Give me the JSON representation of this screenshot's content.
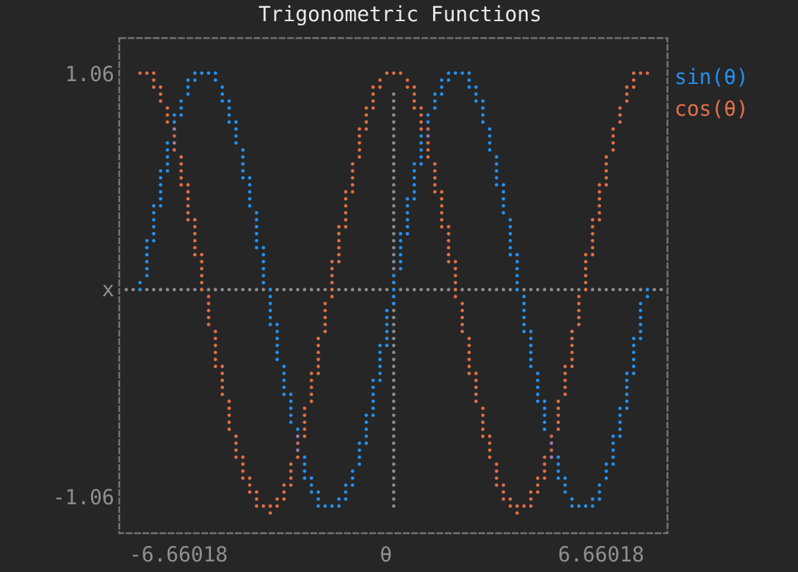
{
  "title": "Trigonometric Functions",
  "axes": {
    "y_max_label": "1.06",
    "y_axis_label": "x",
    "y_min_label": "-1.06",
    "x_min_label": "-6.66018",
    "x_axis_label": "θ",
    "x_max_label": "6.66018"
  },
  "legend": [
    {
      "label": "sin(θ)",
      "color": "#2191f0"
    },
    {
      "label": "cos(θ)",
      "color": "#e2714a"
    }
  ],
  "colors": {
    "background": "#262626",
    "title": "#ebebeb",
    "axis_labels": "#8f8f8f",
    "frame": "#747474",
    "zero_lines": "#8a8a8a",
    "sin": "#2191f0",
    "cos": "#e06e43",
    "overlap_purple": "#9678b4",
    "overlap_pink": "#c06868"
  },
  "chart_data": {
    "type": "scatter",
    "title": "Trigonometric Functions",
    "xlabel": "θ",
    "ylabel": "x",
    "xlim": [
      -6.66018,
      6.66018
    ],
    "ylim": [
      -1.06,
      1.06
    ],
    "theta_range": [
      -6.283185307,
      6.283185307
    ],
    "marker": "dot",
    "grid": false,
    "legend_position": "right-outside",
    "series": [
      {
        "name": "sin(θ)",
        "fn": "sin",
        "color": "#2191f0"
      },
      {
        "name": "cos(θ)",
        "fn": "cos",
        "color": "#e06e43"
      }
    ],
    "reference_lines": [
      {
        "name": "x-zero-line",
        "orientation": "horizontal",
        "value": 0,
        "color": "#8a8a8a"
      },
      {
        "name": "theta-zero-line",
        "orientation": "vertical",
        "value": 0,
        "color": "#8a8a8a"
      }
    ],
    "key_values": {
      "theta": [
        -6.283,
        -5.498,
        -4.712,
        -3.927,
        -3.142,
        -2.356,
        -1.571,
        -0.785,
        0,
        0.785,
        1.571,
        2.356,
        3.142,
        3.927,
        4.712,
        5.498,
        6.283
      ],
      "sin": [
        0,
        0.707,
        1,
        0.707,
        0,
        -0.707,
        -1,
        -0.707,
        0,
        0.707,
        1,
        0.707,
        0,
        -0.707,
        -1,
        -0.707,
        0
      ],
      "cos": [
        1,
        0.707,
        0,
        -0.707,
        -1,
        -0.707,
        0,
        0.707,
        1,
        0.707,
        0,
        -0.707,
        -1,
        -0.707,
        0,
        0.707,
        1
      ]
    }
  }
}
